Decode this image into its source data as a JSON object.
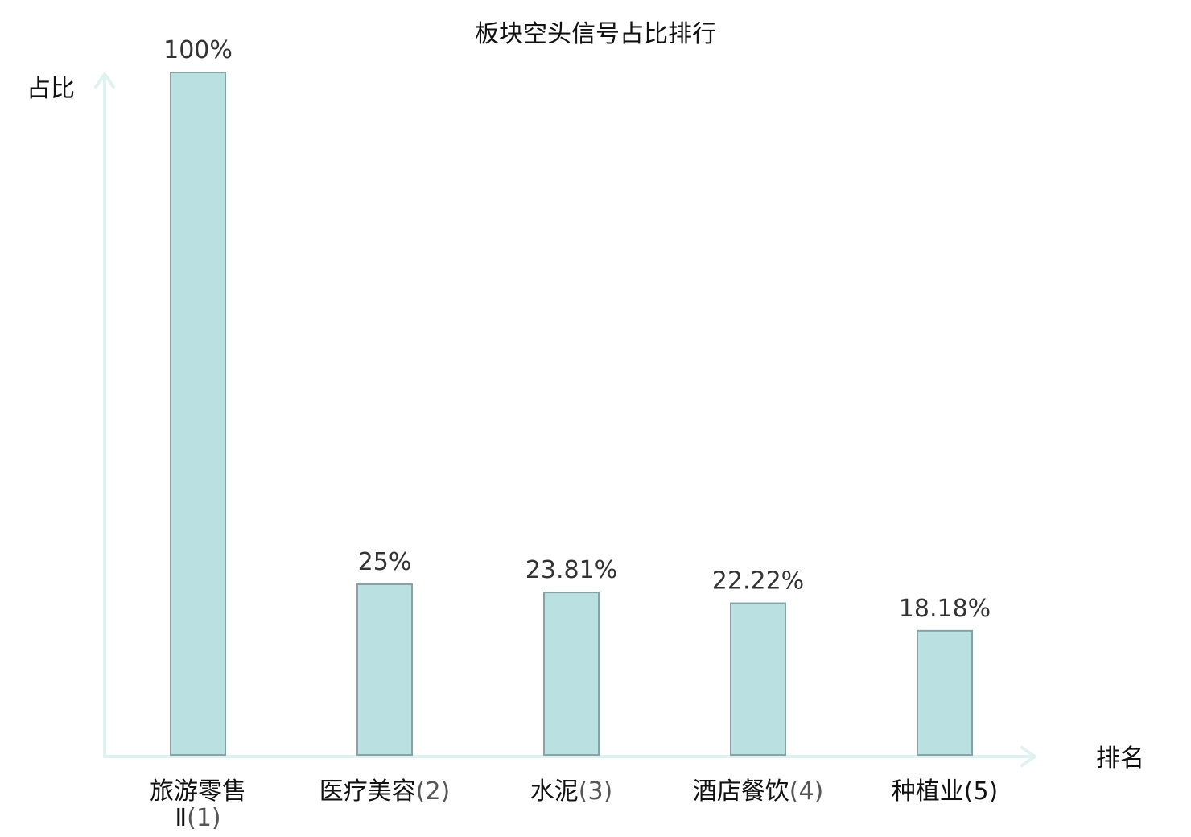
{
  "chart_data": {
    "type": "bar",
    "title": "板块空头信号占比排行",
    "ylabel": "占比",
    "xlabel": "排名",
    "categories": [
      {
        "name": "旅游零售Ⅱ",
        "rank": "(1)",
        "highlight": false
      },
      {
        "name": "医疗美容",
        "rank": "(2)",
        "highlight": false
      },
      {
        "name": "水泥",
        "rank": "(3)",
        "highlight": false
      },
      {
        "name": "酒店餐饮",
        "rank": "(4)",
        "highlight": false
      },
      {
        "name": "种植业",
        "rank": "(5)",
        "highlight": true
      }
    ],
    "values": [
      100,
      25,
      23.81,
      22.22,
      18.18
    ],
    "value_labels": [
      "100%",
      "25%",
      "23.81%",
      "22.22%",
      "18.18%"
    ],
    "ylim": [
      0,
      100
    ],
    "grid": false,
    "legend": "none"
  },
  "colors": {
    "bar_fill": "#bbe0e2",
    "bar_stroke": "#86a3a5",
    "axis": "#dff2ef",
    "highlight_text": "#e00000",
    "text": "#111111",
    "value_text": "#333333"
  }
}
